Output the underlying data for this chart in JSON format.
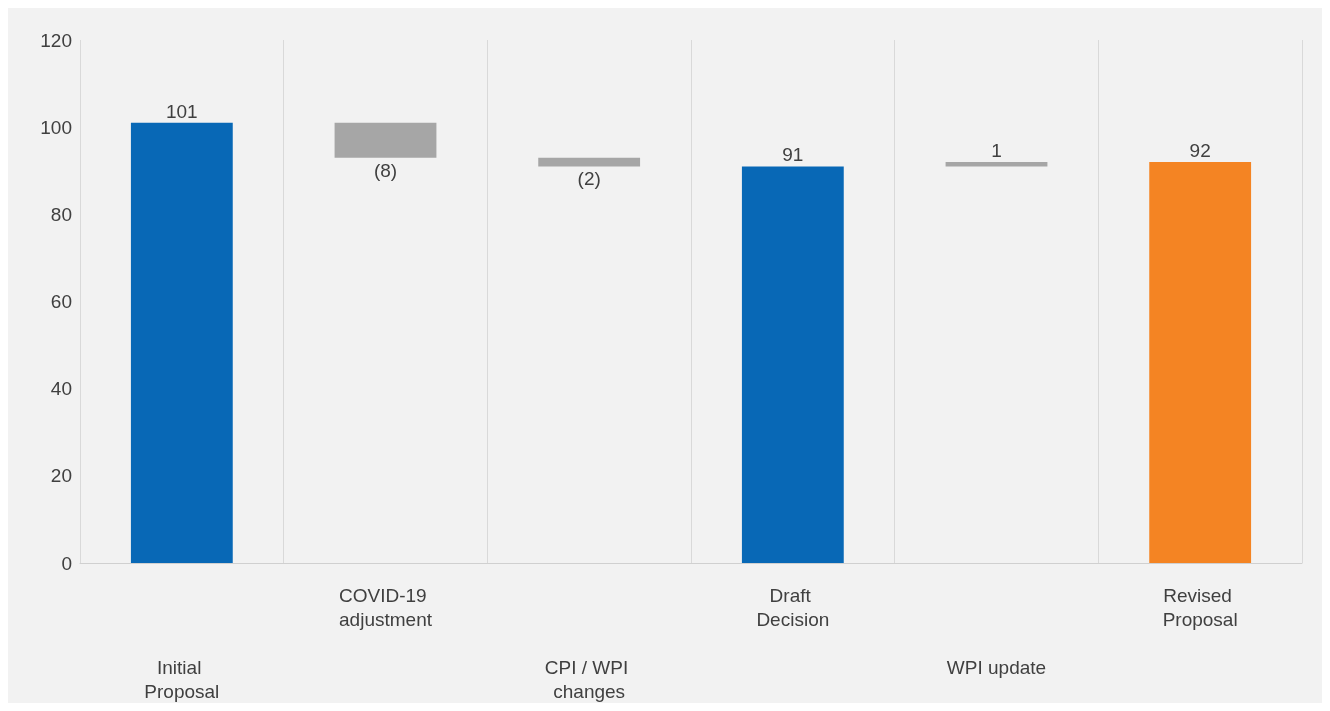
{
  "chart_data": {
    "type": "bar",
    "categories": [
      "Initial Proposal",
      "COVID-19 adjustment",
      "CPI / WPI changes",
      "Draft Decision",
      "WPI update",
      "Revised Proposal"
    ],
    "values": [
      101,
      -8,
      -2,
      91,
      1,
      92
    ],
    "base": [
      0,
      101,
      93,
      0,
      91,
      0
    ],
    "colors": [
      "#0868b6",
      "#a6a6a6",
      "#a6a6a6",
      "#0868b6",
      "#a6a6a6",
      "#f48423"
    ],
    "value_labels": [
      "101",
      "(8)",
      "(2)",
      "91",
      "1",
      "92"
    ],
    "ylim": [
      0,
      120
    ],
    "yticks": [
      0,
      20,
      40,
      60,
      80,
      100,
      120
    ],
    "grid": "x"
  }
}
